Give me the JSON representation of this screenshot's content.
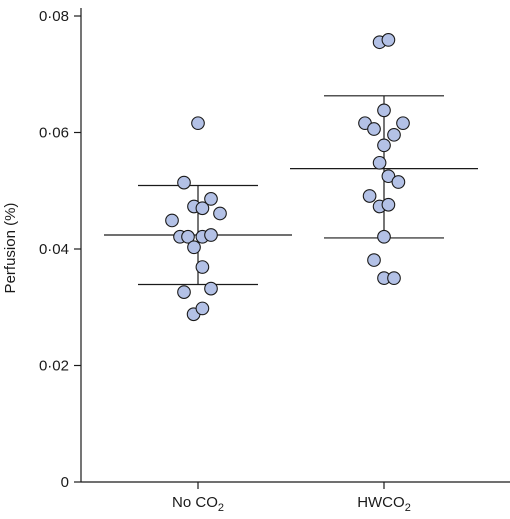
{
  "chart_data": {
    "type": "scatter",
    "ylabel": "Perfusion (%)",
    "ylim": [
      0,
      0.08
    ],
    "yticks": [
      {
        "value": 0,
        "label": "0"
      },
      {
        "value": 0.02,
        "label": "0·02"
      },
      {
        "value": 0.04,
        "label": "0·04"
      },
      {
        "value": 0.06,
        "label": "0·06"
      },
      {
        "value": 0.08,
        "label": "0·08"
      }
    ],
    "categories": [
      {
        "main": "No CO",
        "sub": "2"
      },
      {
        "main": "HWCO",
        "sub": "2"
      }
    ],
    "marker_fill": "#b3c1e6",
    "marker_stroke": "#1a1a1a",
    "groups": [
      {
        "mean": 0.0424,
        "sd_upper": 0.0509,
        "sd_lower": 0.0339,
        "points": [
          {
            "offset": 0,
            "y": 0.0616
          },
          {
            "offset": -0.7,
            "y": 0.0514
          },
          {
            "offset": -1.3,
            "y": 0.0449
          },
          {
            "offset": -0.9,
            "y": 0.0421
          },
          {
            "offset": -0.5,
            "y": 0.0421
          },
          {
            "offset": -0.2,
            "y": 0.0473
          },
          {
            "offset": 0.22,
            "y": 0.047
          },
          {
            "offset": 0.65,
            "y": 0.0486
          },
          {
            "offset": 1.1,
            "y": 0.0461
          },
          {
            "offset": -0.2,
            "y": 0.0403
          },
          {
            "offset": 0.22,
            "y": 0.0421
          },
          {
            "offset": 0.65,
            "y": 0.0424
          },
          {
            "offset": 0.22,
            "y": 0.0369
          },
          {
            "offset": -0.7,
            "y": 0.0326
          },
          {
            "offset": 0.65,
            "y": 0.0332
          },
          {
            "offset": -0.22,
            "y": 0.0288
          },
          {
            "offset": 0.22,
            "y": 0.0298
          }
        ]
      },
      {
        "mean": 0.0538,
        "sd_upper": 0.0663,
        "sd_lower": 0.0419,
        "points": [
          {
            "offset": -0.22,
            "y": 0.0755
          },
          {
            "offset": 0.22,
            "y": 0.0759
          },
          {
            "offset": 0,
            "y": 0.0638
          },
          {
            "offset": -0.95,
            "y": 0.0616
          },
          {
            "offset": -0.5,
            "y": 0.0606
          },
          {
            "offset": 0.5,
            "y": 0.0596
          },
          {
            "offset": 0.95,
            "y": 0.0616
          },
          {
            "offset": 0,
            "y": 0.0578
          },
          {
            "offset": -0.22,
            "y": 0.0548
          },
          {
            "offset": 0.22,
            "y": 0.0525
          },
          {
            "offset": 0.72,
            "y": 0.0515
          },
          {
            "offset": -0.72,
            "y": 0.0491
          },
          {
            "offset": -0.22,
            "y": 0.0473
          },
          {
            "offset": 0.22,
            "y": 0.0476
          },
          {
            "offset": 0,
            "y": 0.0421
          },
          {
            "offset": -0.5,
            "y": 0.0381
          },
          {
            "offset": 0,
            "y": 0.035
          },
          {
            "offset": 0.5,
            "y": 0.035
          }
        ]
      }
    ]
  }
}
